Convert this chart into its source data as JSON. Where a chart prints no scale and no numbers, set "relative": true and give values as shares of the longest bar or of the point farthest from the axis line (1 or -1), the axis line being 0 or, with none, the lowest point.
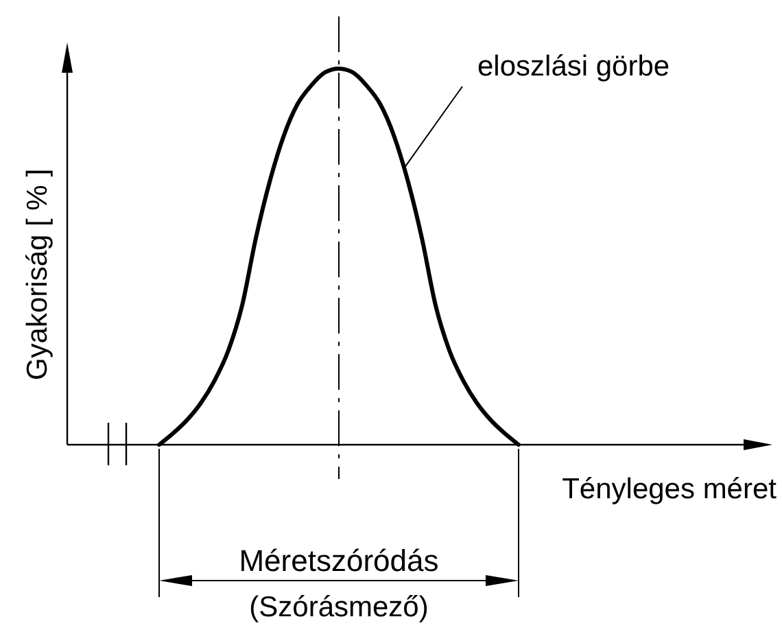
{
  "chart_data": {
    "type": "line",
    "relative": true,
    "xlabel": "Tényleges méret",
    "ylabel": "Gyakoriság [ % ]",
    "categories": [
      null,
      null,
      null,
      null,
      null,
      null,
      null,
      null,
      null,
      null,
      null,
      null,
      null,
      null,
      null,
      null,
      null,
      null,
      null,
      null,
      null,
      null,
      null,
      null,
      null,
      null,
      null
    ],
    "series": [
      {
        "color": "#000000",
        "values": [
          0,
          0.03,
          0.065,
          0.11,
          0.17,
          0.25,
          0.37,
          0.55,
          0.7,
          0.82,
          0.905,
          0.955,
          0.99,
          1,
          0.99,
          0.955,
          0.905,
          0.82,
          0.7,
          0.55,
          0.37,
          0.25,
          0.17,
          0.11,
          0.065,
          0.03,
          0
        ]
      }
    ],
    "annotations": [
      "eloszlási görbe",
      "Méretszóródás",
      "(Szórásmező)"
    ]
  }
}
